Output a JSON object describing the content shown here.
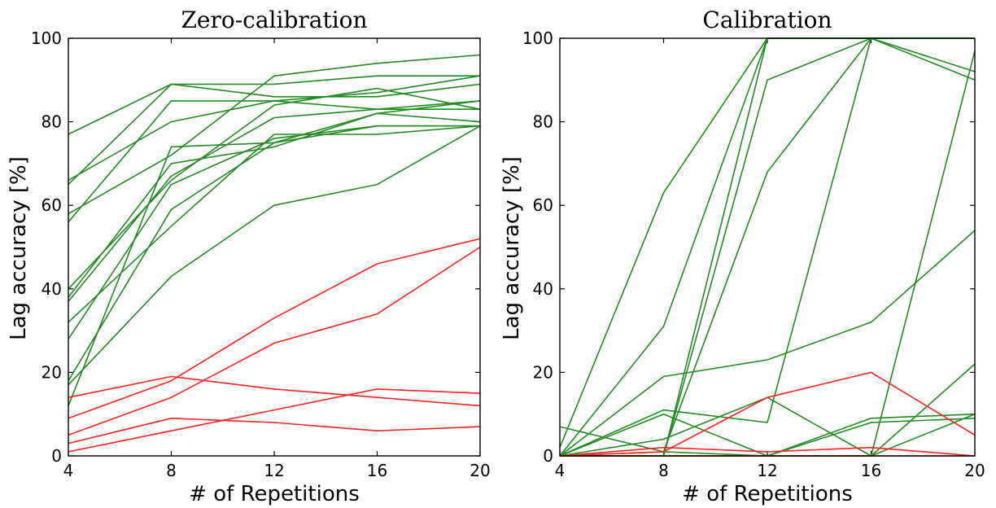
{
  "colors": {
    "green": "#228b22",
    "red": "#ff2020"
  },
  "chart_data": [
    {
      "type": "line",
      "title": "Zero-calibration",
      "xlabel": "# of Repetitions",
      "ylabel": "Lag accuracy [%]",
      "x": [
        4,
        8,
        12,
        16,
        20
      ],
      "xlim": [
        4,
        20
      ],
      "ylim": [
        0,
        100
      ],
      "xticks": [
        "4",
        "8",
        "12",
        "16",
        "20"
      ],
      "yticks": [
        "0",
        "20",
        "40",
        "60",
        "80",
        "100"
      ],
      "series": [
        {
          "color": "green",
          "values": [
            77,
            89,
            89,
            91,
            91
          ]
        },
        {
          "color": "green",
          "values": [
            65,
            89,
            86,
            86,
            89
          ]
        },
        {
          "color": "green",
          "values": [
            58,
            72,
            91,
            94,
            96
          ]
        },
        {
          "color": "green",
          "values": [
            56,
            85,
            85,
            83,
            85
          ]
        },
        {
          "color": "green",
          "values": [
            66,
            80,
            85,
            87,
            91
          ]
        },
        {
          "color": "green",
          "values": [
            40,
            66,
            84,
            88,
            83
          ]
        },
        {
          "color": "green",
          "values": [
            38,
            70,
            74,
            82,
            85
          ]
        },
        {
          "color": "green",
          "values": [
            37,
            67,
            81,
            83,
            83
          ]
        },
        {
          "color": "green",
          "values": [
            32,
            55,
            77,
            77,
            79
          ]
        },
        {
          "color": "green",
          "values": [
            28,
            65,
            76,
            79,
            79
          ]
        },
        {
          "color": "green",
          "values": [
            18,
            59,
            75,
            82,
            80
          ]
        },
        {
          "color": "green",
          "values": [
            12,
            74,
            75,
            79,
            79
          ]
        },
        {
          "color": "green",
          "values": [
            17,
            43,
            60,
            65,
            79
          ]
        },
        {
          "color": "red",
          "values": [
            14,
            19,
            16,
            14,
            12
          ]
        },
        {
          "color": "red",
          "values": [
            9,
            18,
            33,
            46,
            52
          ]
        },
        {
          "color": "red",
          "values": [
            5,
            14,
            27,
            34,
            50
          ]
        },
        {
          "color": "red",
          "values": [
            3,
            9,
            8,
            6,
            7
          ]
        },
        {
          "color": "red",
          "values": [
            1,
            6,
            11,
            16,
            15
          ]
        }
      ]
    },
    {
      "type": "line",
      "title": "Calibration",
      "xlabel": "# of Repetitions",
      "ylabel": "Lag accuracy [%]",
      "x": [
        4,
        8,
        12,
        16,
        20
      ],
      "xlim": [
        4,
        20
      ],
      "ylim": [
        0,
        100
      ],
      "xticks": [
        "4",
        "8",
        "12",
        "16",
        "20"
      ],
      "yticks": [
        "0",
        "20",
        "40",
        "60",
        "80",
        "100"
      ],
      "series": [
        {
          "color": "green",
          "values": [
            2,
            63,
            100,
            100,
            100
          ]
        },
        {
          "color": "green",
          "values": [
            0,
            31,
            100,
            100,
            100
          ]
        },
        {
          "color": "green",
          "values": [
            0,
            0,
            100,
            100,
            100
          ]
        },
        {
          "color": "green",
          "values": [
            0,
            0,
            90,
            100,
            92
          ]
        },
        {
          "color": "green",
          "values": [
            0,
            11,
            8,
            100,
            90
          ]
        },
        {
          "color": "green",
          "values": [
            0,
            1,
            68,
            100,
            100
          ]
        },
        {
          "color": "green",
          "values": [
            0,
            19,
            23,
            32,
            54
          ]
        },
        {
          "color": "green",
          "values": [
            0,
            0,
            0,
            0,
            97
          ]
        },
        {
          "color": "green",
          "values": [
            0,
            0,
            0,
            0,
            22
          ]
        },
        {
          "color": "green",
          "values": [
            7,
            1,
            0,
            8,
            9
          ]
        },
        {
          "color": "green",
          "values": [
            0,
            4,
            14,
            0,
            10
          ]
        },
        {
          "color": "green",
          "values": [
            0,
            10,
            0,
            9,
            10
          ]
        },
        {
          "color": "red",
          "values": [
            0,
            1,
            14,
            20,
            5
          ]
        },
        {
          "color": "red",
          "values": [
            0,
            2,
            1,
            2,
            0
          ]
        },
        {
          "color": "red",
          "values": [
            0,
            0,
            0,
            0,
            0
          ]
        }
      ]
    }
  ]
}
